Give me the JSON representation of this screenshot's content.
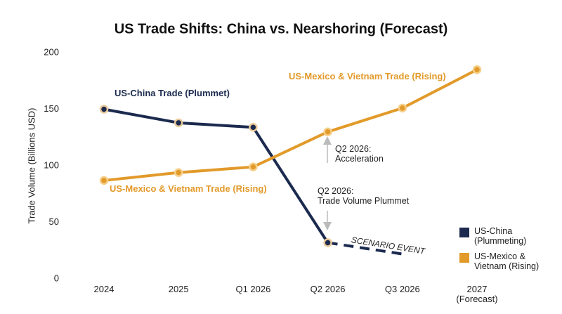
{
  "chart_data": {
    "type": "line",
    "title": "US Trade Shifts: China vs. Nearshoring (Forecast)",
    "y_label": "Trade Volume (Billions USD)",
    "categories": [
      "2024",
      "2025",
      "Q1 2026",
      "Q2 2026",
      "Q3 2026",
      "2027\n(Forecast)"
    ],
    "series": [
      {
        "name": "US-China\n(Plummeting)",
        "color": "#1b2a4e",
        "values": [
          150,
          138,
          134,
          32,
          null,
          null
        ]
      },
      {
        "name": "US-Mexico &\nVietnam (Rising)",
        "color": "#e29a2a",
        "values": [
          87,
          94,
          99,
          130,
          151,
          185
        ]
      }
    ],
    "scenario": {
      "label": "SCENARIO EVENT",
      "color": "#1b2a4e",
      "values": [
        null,
        null,
        null,
        32,
        22,
        null
      ]
    },
    "annotations": [
      "US-China Trade (Plummet)",
      "US-Mexico & Vietnam Trade (Rising)",
      "US-Mexico & Vietnam Trade (Rising)",
      "Q2 2026:\nAcceleration",
      "Q2 2026:\nTrade Volume Plummet"
    ],
    "ylim": [
      0,
      200
    ],
    "yticks": [
      0,
      50,
      100,
      150,
      200
    ],
    "grid": false
  }
}
